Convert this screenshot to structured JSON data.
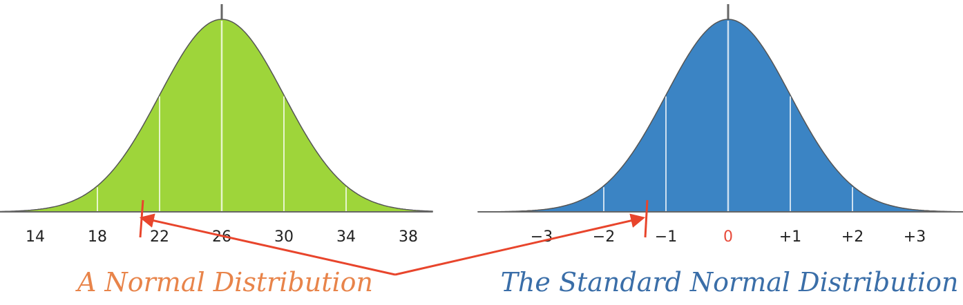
{
  "left_panel": {
    "mean": 26,
    "sd": 4,
    "ticks": [
      "14",
      "18",
      "22",
      "26",
      "30",
      "34",
      "38"
    ],
    "fill_color": "#9ed53a",
    "caption": "A Normal Distribution",
    "caption_color": "#e8844a"
  },
  "right_panel": {
    "mean": 0,
    "sd": 1,
    "ticks": [
      "−3",
      "−2",
      "−1",
      "0",
      "+1",
      "+2",
      "+3"
    ],
    "zero_label_color": "#e84a3a",
    "fill_color": "#3b84c4",
    "caption": "The Standard Normal Distribution",
    "caption_color": "#3a6ea8"
  },
  "marker": {
    "value": 21,
    "z": -1.25,
    "color": "#e8452c"
  },
  "axis_color": "#666666",
  "curve_color": "#555555"
}
